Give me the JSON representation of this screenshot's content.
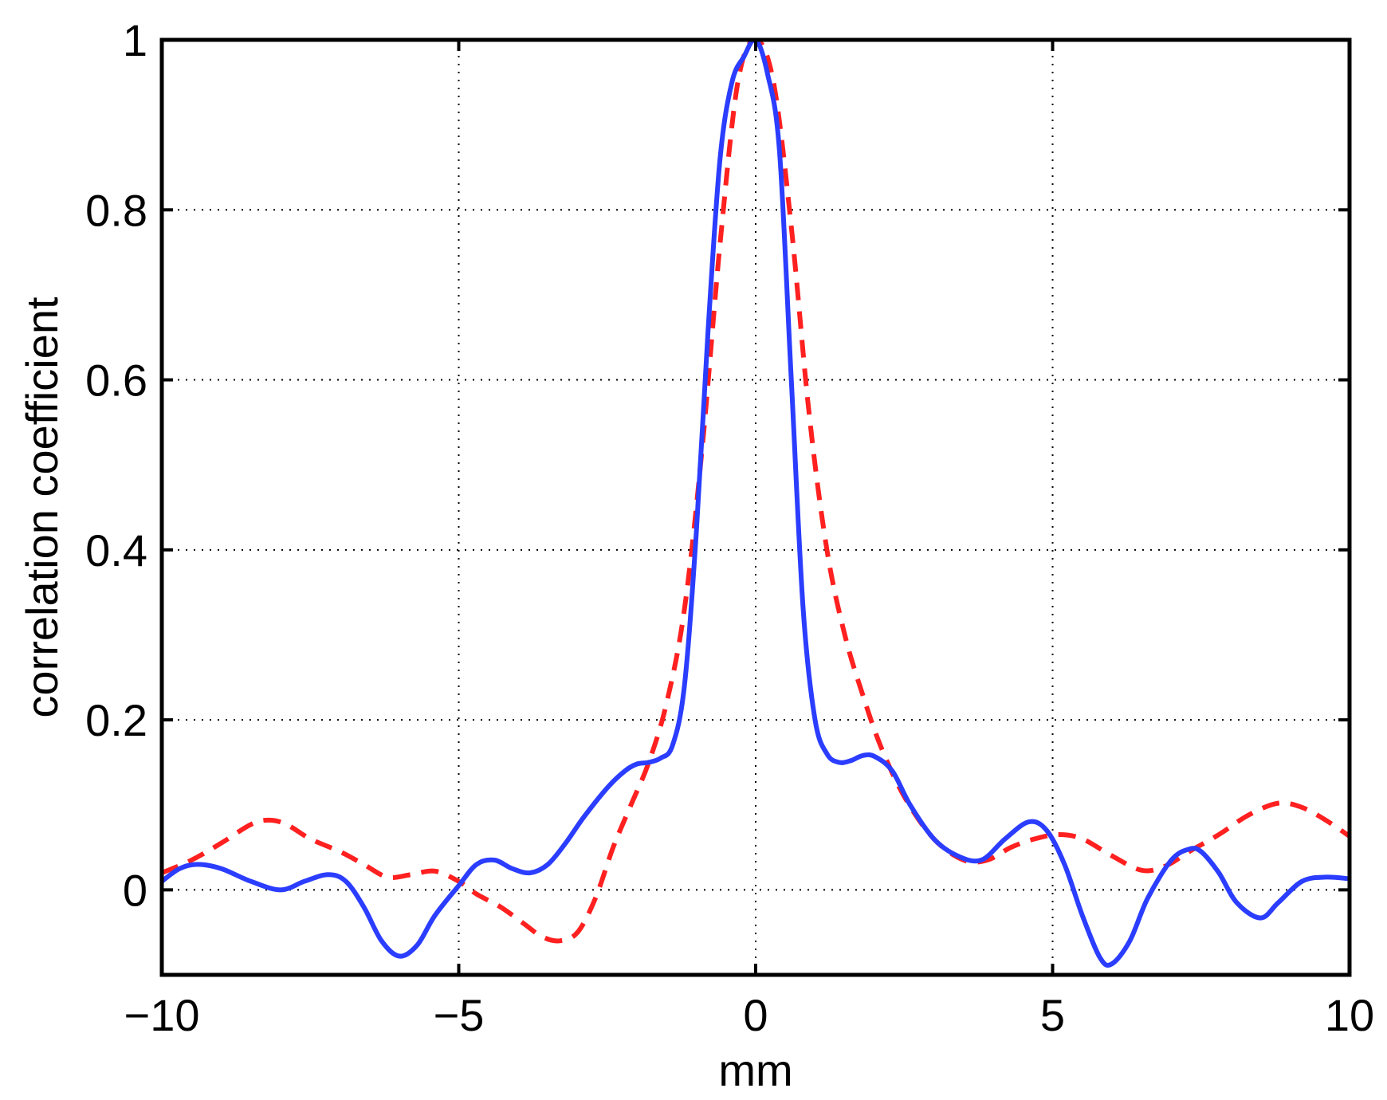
{
  "chart_data": {
    "type": "line",
    "title": "",
    "xlabel": "mm",
    "ylabel": "correlation coefficient",
    "xlim": [
      -10,
      10
    ],
    "ylim": [
      -0.1,
      1
    ],
    "xticks": [
      -10,
      -5,
      0,
      5,
      10
    ],
    "xtick_labels": [
      "−10",
      "−5",
      "0",
      "5",
      "10"
    ],
    "yticks": [
      0,
      0.2,
      0.4,
      0.6,
      0.8,
      1
    ],
    "ytick_labels": [
      "0",
      "0.2",
      "0.4",
      "0.6",
      "0.8",
      "1"
    ],
    "grid": true,
    "legend": "none",
    "series": [
      {
        "color": "#2b3dff",
        "style": "solid",
        "x": [
          -10,
          -9.7,
          -9.4,
          -9.0,
          -8.5,
          -8.0,
          -7.6,
          -7.2,
          -6.9,
          -6.6,
          -6.3,
          -6.0,
          -5.7,
          -5.4,
          -5.0,
          -4.7,
          -4.4,
          -4.1,
          -3.8,
          -3.5,
          -3.2,
          -2.9,
          -2.5,
          -2.2,
          -2.0,
          -1.8,
          -1.6,
          -1.4,
          -1.2,
          -1.0,
          -0.8,
          -0.6,
          -0.4,
          -0.2,
          0.0,
          0.2,
          0.4,
          0.6,
          0.8,
          1.0,
          1.2,
          1.4,
          1.6,
          1.8,
          2.0,
          2.3,
          2.6,
          3.0,
          3.4,
          3.8,
          4.2,
          4.6,
          4.9,
          5.2,
          5.5,
          5.8,
          6.0,
          6.3,
          6.6,
          7.0,
          7.3,
          7.5,
          7.8,
          8.1,
          8.5,
          8.8,
          9.2,
          9.6,
          10.0
        ],
        "y": [
          0.01,
          0.025,
          0.03,
          0.025,
          0.01,
          0.0,
          0.01,
          0.018,
          0.01,
          -0.02,
          -0.06,
          -0.078,
          -0.065,
          -0.03,
          0.005,
          0.03,
          0.035,
          0.025,
          0.02,
          0.03,
          0.055,
          0.085,
          0.12,
          0.14,
          0.148,
          0.15,
          0.155,
          0.17,
          0.24,
          0.42,
          0.66,
          0.86,
          0.95,
          0.98,
          1.0,
          0.96,
          0.87,
          0.6,
          0.33,
          0.2,
          0.16,
          0.15,
          0.152,
          0.158,
          0.157,
          0.14,
          0.1,
          0.06,
          0.04,
          0.035,
          0.06,
          0.08,
          0.07,
          0.03,
          -0.03,
          -0.08,
          -0.087,
          -0.06,
          -0.01,
          0.035,
          0.048,
          0.045,
          0.02,
          -0.015,
          -0.033,
          -0.015,
          0.01,
          0.015,
          0.013
        ]
      },
      {
        "color": "#ff2020",
        "style": "dashed",
        "x": [
          -10,
          -9.5,
          -9.0,
          -8.5,
          -8.2,
          -7.9,
          -7.5,
          -7.0,
          -6.6,
          -6.2,
          -5.8,
          -5.4,
          -5.0,
          -4.7,
          -4.3,
          -3.9,
          -3.6,
          -3.3,
          -3.0,
          -2.7,
          -2.4,
          -2.1,
          -1.8,
          -1.5,
          -1.2,
          -0.9,
          -0.6,
          -0.3,
          0.0,
          0.3,
          0.6,
          0.9,
          1.2,
          1.5,
          1.8,
          2.1,
          2.5,
          3.0,
          3.5,
          3.9,
          4.3,
          4.7,
          5.1,
          5.5,
          6.0,
          6.5,
          6.9,
          7.3,
          7.8,
          8.3,
          8.8,
          9.2,
          9.6,
          10.0
        ],
        "y": [
          0.02,
          0.035,
          0.055,
          0.077,
          0.082,
          0.077,
          0.06,
          0.045,
          0.03,
          0.015,
          0.018,
          0.022,
          0.01,
          -0.005,
          -0.02,
          -0.04,
          -0.055,
          -0.06,
          -0.05,
          -0.01,
          0.05,
          0.1,
          0.15,
          0.22,
          0.33,
          0.52,
          0.76,
          0.95,
          1.0,
          0.95,
          0.78,
          0.56,
          0.4,
          0.3,
          0.23,
          0.17,
          0.11,
          0.06,
          0.035,
          0.035,
          0.05,
          0.06,
          0.065,
          0.06,
          0.04,
          0.023,
          0.028,
          0.045,
          0.065,
          0.088,
          0.102,
          0.097,
          0.082,
          0.063
        ]
      }
    ]
  }
}
